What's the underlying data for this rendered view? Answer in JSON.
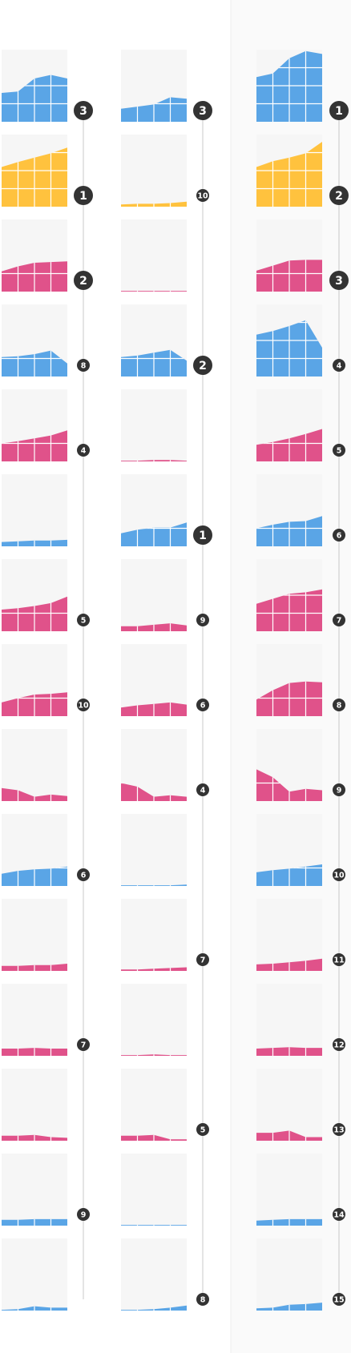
{
  "colors": {
    "blue": "#5aa5e6",
    "yellow": "#ffc23e",
    "pink": "#e0528a",
    "tile_bg": "#f6f6f6",
    "grid_line": "#ffffff",
    "rank_line": "#c8c8c8",
    "badge_bg": "#333333",
    "badge_text": "#ffffff",
    "right_panel": "#fafafa"
  },
  "chart_data": {
    "type": "area",
    "title": "",
    "subtitle": "",
    "grid": true,
    "legend": "none",
    "ylim": [
      0,
      100
    ],
    "columns": [
      {
        "rows": [
          {
            "color": "blue",
            "rank": "3",
            "values": [
              40,
              42,
              60,
              65,
              60
            ]
          },
          {
            "color": "yellow",
            "rank": "1",
            "values": [
              55,
              62,
              68,
              74,
              82
            ]
          },
          {
            "color": "pink",
            "rank": "2",
            "values": [
              28,
              35,
              40,
              41,
              42
            ]
          },
          {
            "color": "blue",
            "rank": "8",
            "values": [
              27,
              28,
              31,
              36,
              18
            ]
          },
          {
            "color": "pink",
            "rank": "4",
            "values": [
              25,
              28,
              32,
              36,
              43
            ]
          },
          {
            "color": "blue",
            "rank": "",
            "values": [
              6,
              7,
              8,
              8,
              9
            ]
          },
          {
            "color": "pink",
            "rank": "5",
            "values": [
              30,
              32,
              35,
              39,
              48
            ]
          },
          {
            "color": "pink",
            "rank": "10",
            "values": [
              19,
              25,
              30,
              31,
              33
            ]
          },
          {
            "color": "pink",
            "rank": "",
            "values": [
              18,
              15,
              6,
              9,
              7
            ]
          },
          {
            "color": "blue",
            "rank": "6",
            "values": [
              17,
              21,
              23,
              24,
              27
            ]
          },
          {
            "color": "pink",
            "rank": "",
            "values": [
              7,
              7,
              8,
              8,
              10
            ]
          },
          {
            "color": "pink",
            "rank": "7",
            "values": [
              10,
              10,
              11,
              10,
              10
            ]
          },
          {
            "color": "pink",
            "rank": "",
            "values": [
              7,
              7,
              8,
              5,
              4
            ]
          },
          {
            "color": "blue",
            "rank": "9",
            "values": [
              8,
              8,
              9,
              9,
              9
            ]
          },
          {
            "color": "blue",
            "rank": "",
            "values": [
              1,
              2,
              6,
              4,
              4
            ]
          }
        ]
      },
      {
        "rows": [
          {
            "color": "blue",
            "rank": "3",
            "values": [
              18,
              21,
              24,
              34,
              32
            ]
          },
          {
            "color": "yellow",
            "rank": "10",
            "values": [
              3,
              4,
              4,
              5,
              7
            ]
          },
          {
            "color": "pink",
            "rank": "",
            "values": [
              1,
              1,
              1,
              1,
              1
            ]
          },
          {
            "color": "blue",
            "rank": "2",
            "values": [
              27,
              29,
              33,
              37,
              22
            ]
          },
          {
            "color": "pink",
            "rank": "",
            "values": [
              1,
              1,
              2,
              2,
              1
            ]
          },
          {
            "color": "blue",
            "rank": "1",
            "values": [
              18,
              23,
              26,
              26,
              33
            ]
          },
          {
            "color": "pink",
            "rank": "9",
            "values": [
              7,
              7,
              9,
              11,
              8
            ]
          },
          {
            "color": "pink",
            "rank": "6",
            "values": [
              12,
              15,
              17,
              19,
              16
            ]
          },
          {
            "color": "pink",
            "rank": "4",
            "values": [
              25,
              20,
              6,
              8,
              6
            ]
          },
          {
            "color": "blue",
            "rank": "",
            "values": [
              1,
              1,
              1,
              1,
              2
            ]
          },
          {
            "color": "pink",
            "rank": "7",
            "values": [
              2,
              2,
              3,
              4,
              5
            ]
          },
          {
            "color": "pink",
            "rank": "",
            "values": [
              1,
              1,
              2,
              1,
              1
            ]
          },
          {
            "color": "pink",
            "rank": "5",
            "values": [
              7,
              7,
              8,
              2,
              2
            ]
          },
          {
            "color": "blue",
            "rank": "",
            "values": [
              1,
              1,
              1,
              1,
              1
            ]
          },
          {
            "color": "blue",
            "rank": "8",
            "values": [
              1,
              1,
              2,
              4,
              7
            ]
          }
        ]
      },
      {
        "rows": [
          {
            "color": "blue",
            "rank": "1",
            "values": [
              62,
              67,
              88,
              98,
              94
            ]
          },
          {
            "color": "yellow",
            "rank": "2",
            "values": [
              55,
              63,
              68,
              74,
              90
            ]
          },
          {
            "color": "pink",
            "rank": "3",
            "values": [
              29,
              36,
              43,
              44,
              44
            ]
          },
          {
            "color": "blue",
            "rank": "4",
            "values": [
              58,
              63,
              70,
              78,
              40
            ]
          },
          {
            "color": "pink",
            "rank": "5",
            "values": [
              23,
              27,
              32,
              38,
              45
            ]
          },
          {
            "color": "blue",
            "rank": "6",
            "values": [
              25,
              30,
              34,
              35,
              42
            ]
          },
          {
            "color": "pink",
            "rank": "7",
            "values": [
              38,
              45,
              52,
              54,
              58
            ]
          },
          {
            "color": "pink",
            "rank": "8",
            "values": [
              23,
              36,
              46,
              48,
              47
            ]
          },
          {
            "color": "pink",
            "rank": "9",
            "values": [
              44,
              33,
              13,
              17,
              15
            ]
          },
          {
            "color": "blue",
            "rank": "10",
            "values": [
              19,
              22,
              24,
              27,
              30
            ]
          },
          {
            "color": "pink",
            "rank": "11",
            "values": [
              9,
              10,
              12,
              14,
              17
            ]
          },
          {
            "color": "pink",
            "rank": "12",
            "values": [
              10,
              11,
              12,
              11,
              11
            ]
          },
          {
            "color": "pink",
            "rank": "13",
            "values": [
              11,
              11,
              14,
              5,
              5
            ]
          },
          {
            "color": "blue",
            "rank": "14",
            "values": [
              7,
              8,
              9,
              9,
              9
            ]
          },
          {
            "color": "blue",
            "rank": "15",
            "values": [
              3,
              4,
              8,
              9,
              11
            ]
          }
        ]
      }
    ]
  }
}
